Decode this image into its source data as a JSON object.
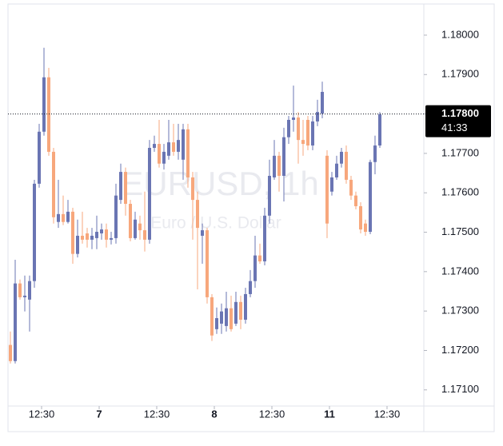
{
  "chart_data": {
    "type": "candlestick",
    "watermark_title": "EURUSD, 1h",
    "watermark_subtitle": "Euro / U.S. Dollar",
    "up_color": "#6a75b3",
    "down_color": "#f7a77c",
    "ylim": [
      1.17059,
      1.18079
    ],
    "yticks": [
      {
        "value": 1.171,
        "label": "1.17100"
      },
      {
        "value": 1.172,
        "label": "1.17200"
      },
      {
        "value": 1.173,
        "label": "1.17300"
      },
      {
        "value": 1.174,
        "label": "1.17400"
      },
      {
        "value": 1.175,
        "label": "1.17500"
      },
      {
        "value": 1.176,
        "label": "1.17600"
      },
      {
        "value": 1.177,
        "label": "1.17700"
      },
      {
        "value": 1.178,
        "label": "1.17800"
      },
      {
        "value": 1.179,
        "label": "1.17900"
      },
      {
        "value": 1.18,
        "label": "1.18000"
      }
    ],
    "xlim": [
      -0.5,
      86.17
    ],
    "xticks": [
      {
        "value": 6.5,
        "label": "12:30"
      },
      {
        "value": 18.5,
        "label": "7"
      },
      {
        "value": 30.5,
        "label": "12:30"
      },
      {
        "value": 42.5,
        "label": "8"
      },
      {
        "value": 54.5,
        "label": "12:30"
      },
      {
        "value": 66.5,
        "label": "11"
      },
      {
        "value": 78.5,
        "label": "12:30"
      }
    ],
    "last_price": {
      "value": 1.178,
      "label": "1.17800"
    },
    "countdown": "41:33",
    "open": [
      1.17214,
      1.17173,
      1.1737,
      1.17335,
      1.17329,
      1.17376,
      1.17623,
      1.17755,
      1.17893,
      1.17704,
      1.17526,
      1.17546,
      1.17526,
      1.17552,
      1.17445,
      1.17491,
      1.17497,
      1.17481,
      1.17485,
      1.17497,
      1.17507,
      1.17481,
      1.17485,
      1.17582,
      1.17653,
      1.17572,
      1.17485,
      1.17522,
      1.17505,
      1.17481,
      1.17714,
      1.17724,
      1.17674,
      1.17694,
      1.17728,
      1.17704,
      1.17684,
      1.17761,
      1.17639,
      1.17582,
      1.17491,
      1.17505,
      1.17335,
      1.17254,
      1.17268,
      1.17262,
      1.17307,
      1.17268,
      1.17323,
      1.17278,
      1.17343,
      1.17376,
      1.17441,
      1.17426,
      1.17542,
      1.17639,
      1.17694,
      1.17643,
      1.17741,
      1.17785,
      1.17791,
      1.17734,
      1.17785,
      1.1772,
      1.17781,
      1.17801,
      1.17694,
      1.17603,
      1.17639,
      1.17674,
      1.17704,
      1.17633,
      1.17593,
      1.17566,
      1.17522,
      1.17501,
      1.17678,
      1.1772
    ],
    "high": [
      1.17248,
      1.1743,
      1.1738,
      1.1739,
      1.1739,
      1.17633,
      1.17775,
      1.17968,
      1.17917,
      1.17714,
      1.17633,
      1.17593,
      1.17582,
      1.17562,
      1.17532,
      1.17552,
      1.17511,
      1.17511,
      1.17542,
      1.17522,
      1.17522,
      1.17501,
      1.17623,
      1.17674,
      1.17664,
      1.17582,
      1.17552,
      1.17542,
      1.17603,
      1.17734,
      1.17745,
      1.17785,
      1.17724,
      1.17785,
      1.17775,
      1.17775,
      1.17775,
      1.17775,
      1.17653,
      1.17603,
      1.17522,
      1.17511,
      1.17343,
      1.17309,
      1.17319,
      1.17349,
      1.17339,
      1.17349,
      1.17339,
      1.17359,
      1.17404,
      1.17491,
      1.17471,
      1.17562,
      1.17684,
      1.17734,
      1.17704,
      1.17765,
      1.17795,
      1.17872,
      1.17805,
      1.17785,
      1.17795,
      1.17795,
      1.17836,
      1.17882,
      1.17708,
      1.17653,
      1.17694,
      1.17714,
      1.1772,
      1.17643,
      1.17603,
      1.17576,
      1.17532,
      1.17684,
      1.17745,
      1.17805
    ],
    "low": [
      1.17167,
      1.17167,
      1.17329,
      1.17299,
      1.17248,
      1.17359,
      1.17613,
      1.17745,
      1.17694,
      1.17522,
      1.17511,
      1.17518,
      1.17522,
      1.1742,
      1.17436,
      1.17471,
      1.17461,
      1.17457,
      1.17457,
      1.17481,
      1.17461,
      1.17469,
      1.17471,
      1.17572,
      1.17542,
      1.17477,
      1.17481,
      1.17481,
      1.17451,
      1.17471,
      1.17704,
      1.17664,
      1.17659,
      1.17684,
      1.17694,
      1.17684,
      1.17633,
      1.17613,
      1.17481,
      1.17355,
      1.1742,
      1.17319,
      1.17224,
      1.17242,
      1.17242,
      1.17248,
      1.17248,
      1.17262,
      1.17254,
      1.17268,
      1.17335,
      1.17359,
      1.1742,
      1.17416,
      1.17522,
      1.17633,
      1.17603,
      1.17578,
      1.17724,
      1.17755,
      1.17674,
      1.17694,
      1.17708,
      1.17708,
      1.17769,
      1.17789,
      1.17485,
      1.17593,
      1.17633,
      1.17664,
      1.17623,
      1.17582,
      1.17558,
      1.17497,
      1.17491,
      1.17495,
      1.17647,
      1.17714
    ],
    "close": [
      1.17173,
      1.1737,
      1.17335,
      1.17339,
      1.17376,
      1.17623,
      1.17755,
      1.17893,
      1.17704,
      1.17538,
      1.17546,
      1.17526,
      1.17552,
      1.17445,
      1.17491,
      1.17481,
      1.17481,
      1.17491,
      1.17501,
      1.17507,
      1.17481,
      1.17485,
      1.17593,
      1.17653,
      1.17572,
      1.17485,
      1.17532,
      1.17505,
      1.17481,
      1.17714,
      1.17724,
      1.17674,
      1.17704,
      1.17728,
      1.17704,
      1.17734,
      1.17761,
      1.17639,
      1.17582,
      1.17511,
      1.17505,
      1.17335,
      1.17238,
      1.17282,
      1.17299,
      1.17307,
      1.17254,
      1.17323,
      1.17278,
      1.17343,
      1.17376,
      1.17441,
      1.17426,
      1.17542,
      1.17643,
      1.17694,
      1.17643,
      1.17741,
      1.17785,
      1.17791,
      1.17734,
      1.17724,
      1.1772,
      1.17781,
      1.17805,
      1.17856,
      1.17522,
      1.17639,
      1.17674,
      1.17704,
      1.17633,
      1.17593,
      1.17566,
      1.17507,
      1.17501,
      1.17678,
      1.1772,
      1.17799
    ]
  }
}
